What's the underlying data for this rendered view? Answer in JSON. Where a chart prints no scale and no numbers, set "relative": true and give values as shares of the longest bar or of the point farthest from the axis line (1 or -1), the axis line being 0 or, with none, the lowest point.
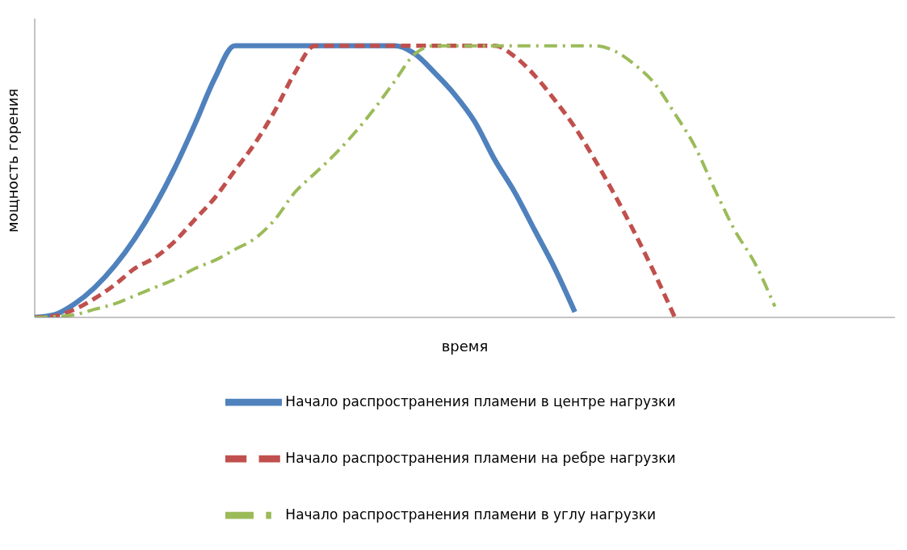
{
  "chart_data": {
    "type": "line",
    "relative": true,
    "xlabel": "время",
    "ylabel": "мощность горения",
    "legend": "bottom",
    "grid": false,
    "marker": "none",
    "categories": [
      null,
      null,
      null,
      null,
      null,
      null,
      null,
      null,
      null,
      null,
      null,
      null,
      null,
      null,
      null,
      null,
      null,
      null,
      null,
      null,
      null,
      null,
      null,
      null,
      null,
      null,
      null,
      null,
      null,
      null,
      null,
      null,
      null,
      null,
      null,
      null,
      null,
      null,
      null,
      null,
      null,
      null,
      null,
      null
    ],
    "series": [
      {
        "name": "Начало распространения пламени в центре  нагрузки",
        "color": "#4f81bd",
        "line_style": "solid",
        "values": [
          0,
          0.01,
          0.05,
          0.11,
          0.19,
          0.29,
          0.41,
          0.55,
          0.71,
          0.88,
          1,
          1,
          1,
          1,
          1,
          1,
          1,
          1,
          1,
          0.97,
          0.9,
          0.82,
          0.72,
          0.58,
          0.46,
          0.32,
          0.18,
          0.02,
          null,
          null,
          null,
          null,
          null,
          null,
          null,
          null,
          null,
          null,
          null,
          null,
          null,
          null,
          null,
          null
        ]
      },
      {
        "name": "Начало распространения пламени на ребре  нагрузки",
        "color": "#c0504d",
        "line_style": "dashed",
        "values": [
          0,
          0.005,
          0.03,
          0.07,
          0.12,
          0.18,
          0.22,
          0.28,
          0.36,
          0.44,
          0.54,
          0.64,
          0.76,
          0.9,
          1,
          1,
          1,
          1,
          1,
          1,
          1,
          1,
          1,
          1,
          0.96,
          0.89,
          0.8,
          0.7,
          0.58,
          0.45,
          0.31,
          0.16,
          0,
          null,
          null,
          null,
          null,
          null,
          null,
          null,
          null,
          null,
          null,
          null
        ]
      },
      {
        "name": "Начало распространения пламени в углу нагрузки",
        "color": "#9bbb59",
        "line_style": "dashdot",
        "values": [
          0,
          0.003,
          0.01,
          0.03,
          0.05,
          0.08,
          0.11,
          0.14,
          0.18,
          0.21,
          0.25,
          0.29,
          0.36,
          0.46,
          0.53,
          0.6,
          0.68,
          0.77,
          0.87,
          0.97,
          1,
          1,
          1,
          1,
          1,
          1,
          1,
          1,
          1,
          0.98,
          0.93,
          0.86,
          0.75,
          0.63,
          0.47,
          0.32,
          0.2,
          0.04,
          null,
          null,
          null,
          null,
          null,
          null
        ]
      }
    ]
  }
}
